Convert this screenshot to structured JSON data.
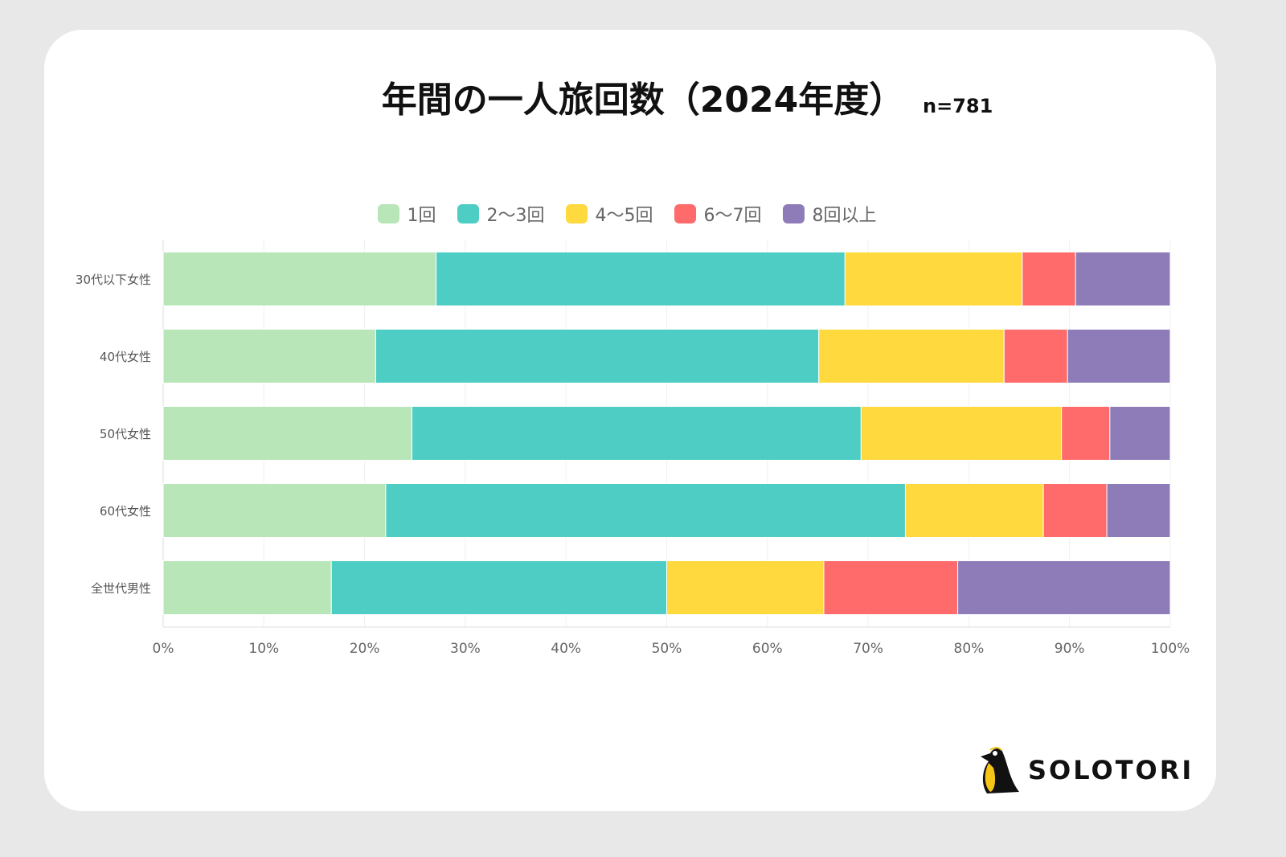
{
  "title": "年間の一人旅回数（2024年度）",
  "sample": "n=781",
  "logo_text": "SOLOTORI",
  "chart_data": {
    "type": "bar",
    "orientation": "horizontal",
    "stacked": "percent",
    "title": "年間の一人旅回数（2024年度）",
    "categories": [
      "30代以下女性",
      "40代女性",
      "50代女性",
      "60代女性",
      "全世代男性"
    ],
    "series": [
      {
        "name": "1回",
        "color": "#b8e6b8",
        "values": [
          27.1,
          21.1,
          24.7,
          22.1,
          16.7
        ]
      },
      {
        "name": "2〜3回",
        "color": "#4ecdc4",
        "values": [
          40.6,
          44.0,
          44.6,
          51.6,
          33.3
        ]
      },
      {
        "name": "4〜5回",
        "color": "#ffd93d",
        "values": [
          17.6,
          18.4,
          19.9,
          13.7,
          15.6
        ]
      },
      {
        "name": "6〜7回",
        "color": "#ff6b6b",
        "values": [
          5.3,
          6.3,
          4.8,
          6.3,
          13.3
        ]
      },
      {
        "name": "8回以上",
        "color": "#8e7cb9",
        "values": [
          9.4,
          10.2,
          6.0,
          6.3,
          21.1
        ]
      }
    ],
    "xlim": [
      0,
      100
    ],
    "xticks": [
      "0%",
      "10%",
      "20%",
      "30%",
      "40%",
      "50%",
      "60%",
      "70%",
      "80%",
      "90%",
      "100%"
    ],
    "grid": true,
    "legend": "top"
  }
}
